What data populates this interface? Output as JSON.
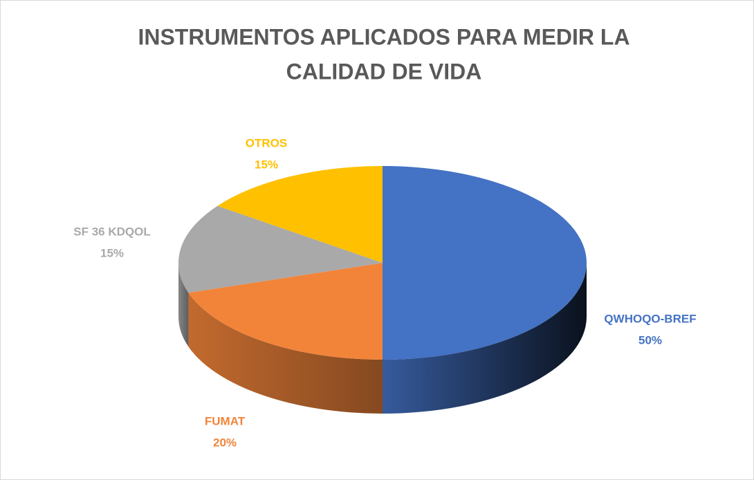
{
  "chart_data": {
    "type": "pie3d",
    "title": [
      "INSTRUMENTOS APLICADOS PARA MEDIR LA",
      "CALIDAD DE VIDA"
    ],
    "categories": [
      "QWHOQO-BREF",
      "FUMAT",
      "SF 36 KDQOL",
      "OTROS"
    ],
    "values": [
      50,
      20,
      15,
      15
    ],
    "value_labels": [
      "50%",
      "20%",
      "15%",
      "15%"
    ],
    "colors": [
      "#4472c4",
      "#f2843a",
      "#a9a9a9",
      "#ffc000"
    ]
  }
}
